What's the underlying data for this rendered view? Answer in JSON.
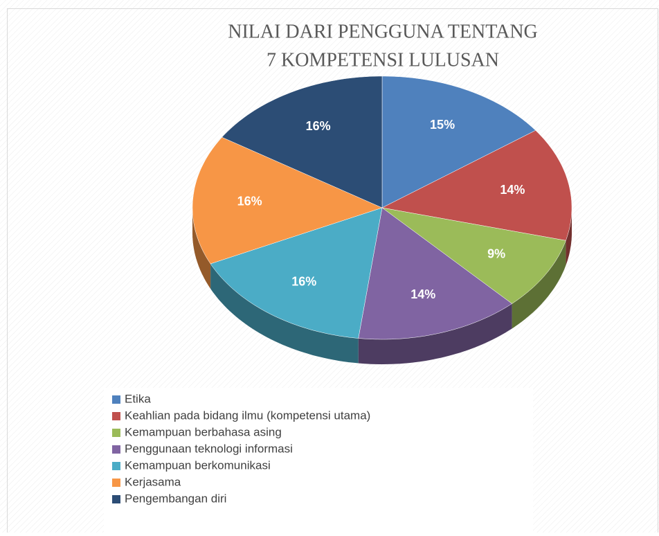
{
  "chart_data": {
    "type": "pie",
    "title": [
      "NILAI DARI PENGGUNA TENTANG",
      "7 KOMPETENSI LULUSAN"
    ],
    "categories": [
      "Etika",
      "Keahlian pada bidang ilmu (kompetensi utama)",
      "Kemampuan berbahasa asing",
      "Penggunaan teknologi informasi",
      "Kemampuan berkomunikasi",
      "Kerjasama",
      "Pengembangan diri"
    ],
    "values": [
      15,
      14,
      9,
      14,
      16,
      16,
      16
    ],
    "value_labels": [
      "15%",
      "14%",
      "9%",
      "14%",
      "16%",
      "16%",
      "16%"
    ],
    "colors": [
      "#4f81bd",
      "#c0504d",
      "#9bbb59",
      "#8064a2",
      "#4bacc6",
      "#f79646",
      "#2c4d75"
    ],
    "legend": "bottom"
  }
}
